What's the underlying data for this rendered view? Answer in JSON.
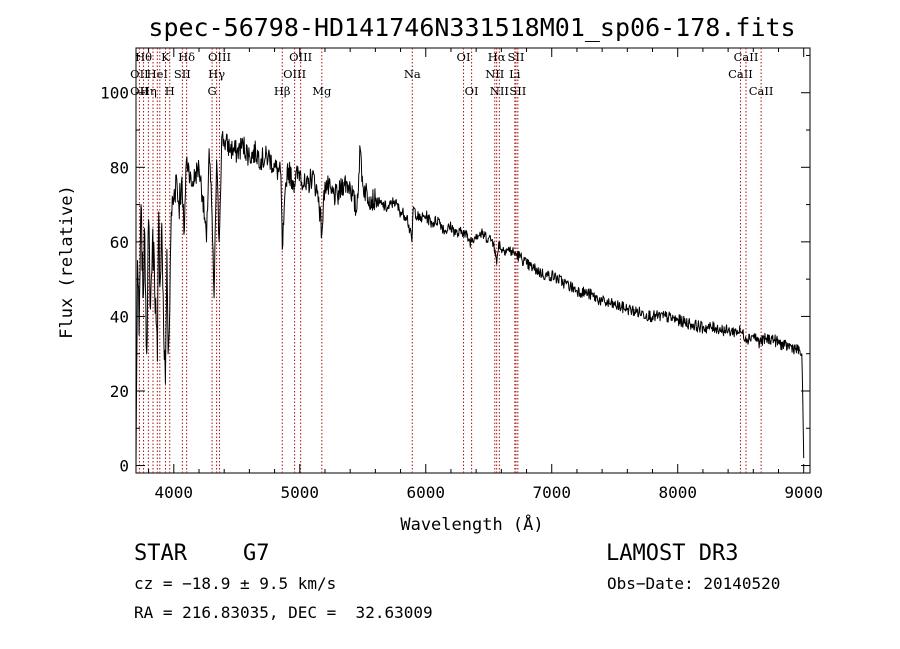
{
  "chart_data": {
    "type": "line",
    "title": "spec-56798-HD141746N331518M01_sp06-178.fits",
    "xlabel": "Wavelength (Å)",
    "ylabel": "Flux (relative)",
    "xlim": [
      3700,
      9050
    ],
    "ylim": [
      -2,
      112
    ],
    "xticks": [
      4000,
      5000,
      6000,
      7000,
      8000,
      9000
    ],
    "yticks": [
      0,
      20,
      40,
      60,
      80,
      100
    ],
    "colors": {
      "spectrum": "#000000",
      "lines": "#aa1111"
    },
    "series": [
      {
        "name": "flux",
        "x": [
          3700,
          3712,
          3725,
          3740,
          3755,
          3770,
          3785,
          3800,
          3815,
          3830,
          3845,
          3860,
          3870,
          3880,
          3890,
          3905,
          3920,
          3933,
          3945,
          3955,
          3968,
          3980,
          4000,
          4020,
          4040,
          4060,
          4080,
          4100,
          4120,
          4140,
          4170,
          4200,
          4230,
          4260,
          4280,
          4300,
          4320,
          4340,
          4360,
          4380,
          4400,
          4450,
          4500,
          4550,
          4600,
          4650,
          4700,
          4750,
          4800,
          4850,
          4861,
          4900,
          4950,
          5000,
          5050,
          5100,
          5150,
          5175,
          5200,
          5250,
          5300,
          5350,
          5400,
          5450,
          5480,
          5500,
          5550,
          5600,
          5650,
          5700,
          5750,
          5800,
          5850,
          5890,
          5900,
          5950,
          6000,
          6050,
          6100,
          6150,
          6200,
          6250,
          6300,
          6350,
          6400,
          6450,
          6500,
          6540,
          6563,
          6580,
          6600,
          6650,
          6700,
          6750,
          6800,
          6850,
          6900,
          6950,
          7000,
          7100,
          7200,
          7300,
          7400,
          7500,
          7600,
          7700,
          7800,
          7900,
          8000,
          8100,
          8200,
          8300,
          8400,
          8500,
          8550,
          8600,
          8650,
          8700,
          8750,
          8800,
          8850,
          8900,
          8950,
          8985,
          9000
        ],
        "y": [
          0,
          55,
          35,
          70,
          45,
          62,
          30,
          66,
          42,
          60,
          55,
          38,
          28,
          68,
          48,
          65,
          35,
          22,
          58,
          30,
          42,
          68,
          72,
          78,
          70,
          76,
          62,
          82,
          80,
          75,
          78,
          80,
          72,
          60,
          85,
          70,
          45,
          82,
          60,
          88,
          87,
          85,
          84,
          86,
          83,
          84,
          82,
          83,
          80,
          78,
          58,
          80,
          76,
          79,
          74,
          78,
          72,
          62,
          76,
          73,
          72,
          76,
          75,
          68,
          85,
          75,
          72,
          71,
          70,
          69,
          71,
          68,
          67,
          60,
          69,
          66,
          67,
          65,
          66,
          63,
          64,
          62,
          63,
          60,
          62,
          62,
          61,
          60,
          54,
          60,
          58,
          58,
          57,
          56,
          54,
          53,
          52,
          51,
          51,
          49,
          47,
          46,
          44,
          43,
          42,
          41,
          40,
          40,
          39,
          38,
          37,
          37,
          36,
          36,
          34,
          35,
          33,
          34,
          34,
          33,
          32,
          32,
          31,
          30,
          2
        ]
      }
    ],
    "spectral_lines": [
      {
        "x": 3727,
        "labels": [
          "",
          "OII",
          "OII"
        ]
      },
      {
        "x": 3760,
        "labels": [
          "Hθ",
          "",
          ""
        ]
      },
      {
        "x": 3798,
        "labels": [
          "",
          "",
          "Hη"
        ]
      },
      {
        "x": 3835,
        "labels": [
          "",
          "",
          ""
        ]
      },
      {
        "x": 3869,
        "labels": [
          "",
          "HeI",
          ""
        ]
      },
      {
        "x": 3889,
        "labels": [
          "",
          "",
          ""
        ]
      },
      {
        "x": 3934,
        "labels": [
          "K",
          "",
          ""
        ]
      },
      {
        "x": 3968,
        "labels": [
          "",
          "",
          "H"
        ]
      },
      {
        "x": 4068,
        "labels": [
          "",
          "SII",
          ""
        ]
      },
      {
        "x": 4102,
        "labels": [
          "Hδ",
          "",
          ""
        ]
      },
      {
        "x": 4304,
        "labels": [
          "",
          "",
          "G"
        ]
      },
      {
        "x": 4340,
        "labels": [
          "",
          "Hγ",
          ""
        ]
      },
      {
        "x": 4363,
        "labels": [
          "OIII",
          "",
          ""
        ]
      },
      {
        "x": 4861,
        "labels": [
          "",
          "",
          "Hβ"
        ]
      },
      {
        "x": 4959,
        "labels": [
          "",
          "OIII",
          ""
        ]
      },
      {
        "x": 5007,
        "labels": [
          "OIII",
          "",
          ""
        ]
      },
      {
        "x": 5175,
        "labels": [
          "",
          "",
          "Mg"
        ]
      },
      {
        "x": 5893,
        "labels": [
          "",
          "Na",
          ""
        ]
      },
      {
        "x": 6300,
        "labels": [
          "OI",
          "",
          ""
        ]
      },
      {
        "x": 6364,
        "labels": [
          "",
          "",
          "OI"
        ]
      },
      {
        "x": 6548,
        "labels": [
          "",
          "NII",
          ""
        ]
      },
      {
        "x": 6563,
        "labels": [
          "Hα",
          "",
          ""
        ]
      },
      {
        "x": 6584,
        "labels": [
          "",
          "",
          "NII"
        ]
      },
      {
        "x": 6707,
        "labels": [
          "",
          "Li",
          ""
        ]
      },
      {
        "x": 6716,
        "labels": [
          "SII",
          "",
          ""
        ]
      },
      {
        "x": 6731,
        "labels": [
          "",
          "",
          "SII"
        ]
      },
      {
        "x": 8498,
        "labels": [
          "",
          "CaII",
          ""
        ]
      },
      {
        "x": 8542,
        "labels": [
          "CaII",
          "",
          ""
        ]
      },
      {
        "x": 8662,
        "labels": [
          "",
          "",
          "CaII"
        ]
      }
    ]
  },
  "footer": {
    "object_class": "STAR",
    "subclass": "G7",
    "survey": "LAMOST DR3",
    "redshift": "cz = −18.9 ± 9.5 km/s",
    "obs_date": "Obs−Date: 20140520",
    "coords": "RA = 216.83035, DEC =  32.63009"
  }
}
